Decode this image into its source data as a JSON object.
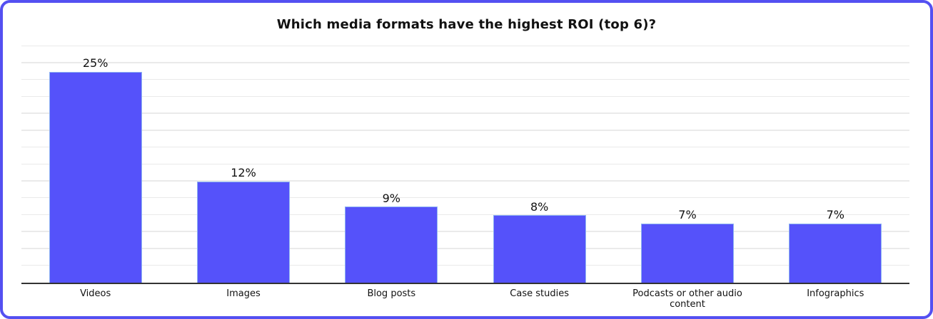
{
  "chart_data": {
    "type": "bar",
    "title": "Which media formats have the highest ROI (top 6)?",
    "categories": [
      "Videos",
      "Images",
      "Blog posts",
      "Case studies",
      "Podcasts or other audio content",
      "Infographics"
    ],
    "values": [
      25,
      12,
      9,
      8,
      7,
      7
    ],
    "value_labels": [
      "25%",
      "12%",
      "9%",
      "8%",
      "7%",
      "7%"
    ],
    "xlabel": "",
    "ylabel": "",
    "ylim": [
      0,
      28
    ],
    "grid_step": 2,
    "grid": "horizontal-only, no tick labels",
    "legend_position": "none"
  },
  "colors": {
    "bar_fill": "#5552FA",
    "bar_edge": "#8FB4F2",
    "card_border": "#5450F1",
    "gridline": "#EAEAEA",
    "axis_line": "#333333",
    "text": "#111111",
    "background": "#FFFFFF"
  }
}
